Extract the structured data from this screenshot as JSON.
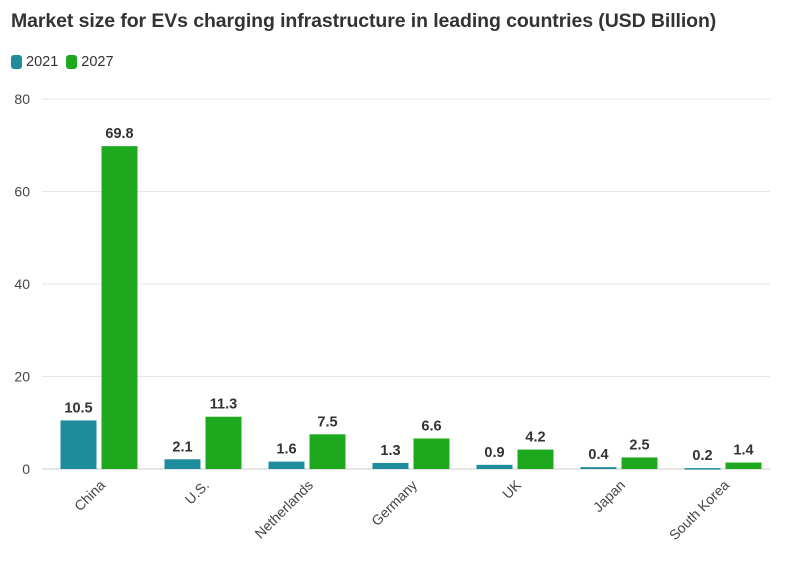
{
  "chart_data": {
    "type": "bar",
    "title": "Market size for EVs charging infrastructure in leading countries (USD Billion)",
    "xlabel": "",
    "ylabel": "",
    "ylim": [
      0,
      80
    ],
    "yticks": [
      0,
      20,
      40,
      60,
      80
    ],
    "categories": [
      "China",
      "U.S.",
      "Netherlands",
      "Germany",
      "UK",
      "Japan",
      "South Korea"
    ],
    "series": [
      {
        "name": "2021",
        "color": "#1e8c9b",
        "values": [
          10.5,
          2.1,
          1.6,
          1.3,
          0.9,
          0.4,
          0.2
        ]
      },
      {
        "name": "2027",
        "color": "#1ea81e",
        "values": [
          69.8,
          11.3,
          7.5,
          6.6,
          4.2,
          2.5,
          1.4
        ]
      }
    ],
    "grid": true,
    "legend_position": "top-left"
  }
}
